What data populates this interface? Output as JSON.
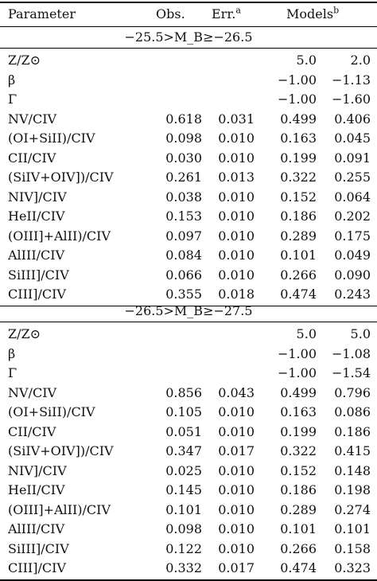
{
  "header": {
    "parameter": "Parameter",
    "obs": "Obs.",
    "err": "Err.",
    "err_sup": "a",
    "models": "Models",
    "models_sup": "b"
  },
  "sections": [
    {
      "title": "−25.5>M_B≥−26.5",
      "rows": [
        {
          "param": "Z/Z⊙",
          "obs": "",
          "err": "",
          "m1": "5.0",
          "m2": "2.0"
        },
        {
          "param": "β",
          "obs": "",
          "err": "",
          "m1": "−1.00",
          "m2": "−1.13"
        },
        {
          "param": "Γ",
          "obs": "",
          "err": "",
          "m1": "−1.00",
          "m2": "−1.60"
        },
        {
          "param": "NV/CIV",
          "obs": "0.618",
          "err": "0.031",
          "m1": "0.499",
          "m2": "0.406"
        },
        {
          "param": "(OI+SiII)/CIV",
          "obs": "0.098",
          "err": "0.010",
          "m1": "0.163",
          "m2": "0.045"
        },
        {
          "param": "CII/CIV",
          "obs": "0.030",
          "err": "0.010",
          "m1": "0.199",
          "m2": "0.091"
        },
        {
          "param": "(SiIV+OIV])/CIV",
          "obs": "0.261",
          "err": "0.013",
          "m1": "0.322",
          "m2": "0.255"
        },
        {
          "param": "NIV]/CIV",
          "obs": "0.038",
          "err": "0.010",
          "m1": "0.152",
          "m2": "0.064"
        },
        {
          "param": "HeII/CIV",
          "obs": "0.153",
          "err": "0.010",
          "m1": "0.186",
          "m2": "0.202"
        },
        {
          "param": "(OIII]+AlII)/CIV",
          "obs": "0.097",
          "err": "0.010",
          "m1": "0.289",
          "m2": "0.175"
        },
        {
          "param": "AlIII/CIV",
          "obs": "0.084",
          "err": "0.010",
          "m1": "0.101",
          "m2": "0.049"
        },
        {
          "param": "SiIII]/CIV",
          "obs": "0.066",
          "err": "0.010",
          "m1": "0.266",
          "m2": "0.090"
        },
        {
          "param": "CIII]/CIV",
          "obs": "0.355",
          "err": "0.018",
          "m1": "0.474",
          "m2": "0.243"
        }
      ]
    },
    {
      "title": "−26.5>M_B≥−27.5",
      "rows": [
        {
          "param": "Z/Z⊙",
          "obs": "",
          "err": "",
          "m1": "5.0",
          "m2": "5.0"
        },
        {
          "param": "β",
          "obs": "",
          "err": "",
          "m1": "−1.00",
          "m2": "−1.08"
        },
        {
          "param": "Γ",
          "obs": "",
          "err": "",
          "m1": "−1.00",
          "m2": "−1.54"
        },
        {
          "param": "NV/CIV",
          "obs": "0.856",
          "err": "0.043",
          "m1": "0.499",
          "m2": "0.796"
        },
        {
          "param": "(OI+SiII)/CIV",
          "obs": "0.105",
          "err": "0.010",
          "m1": "0.163",
          "m2": "0.086"
        },
        {
          "param": "CII/CIV",
          "obs": "0.051",
          "err": "0.010",
          "m1": "0.199",
          "m2": "0.186"
        },
        {
          "param": "(SiIV+OIV])/CIV",
          "obs": "0.347",
          "err": "0.017",
          "m1": "0.322",
          "m2": "0.415"
        },
        {
          "param": "NIV]/CIV",
          "obs": "0.025",
          "err": "0.010",
          "m1": "0.152",
          "m2": "0.148"
        },
        {
          "param": "HeII/CIV",
          "obs": "0.145",
          "err": "0.010",
          "m1": "0.186",
          "m2": "0.198"
        },
        {
          "param": "(OIII]+AlII)/CIV",
          "obs": "0.101",
          "err": "0.010",
          "m1": "0.289",
          "m2": "0.274"
        },
        {
          "param": "AlIII/CIV",
          "obs": "0.098",
          "err": "0.010",
          "m1": "0.101",
          "m2": "0.101"
        },
        {
          "param": "SiIII]/CIV",
          "obs": "0.122",
          "err": "0.010",
          "m1": "0.266",
          "m2": "0.158"
        },
        {
          "param": "CIII]/CIV",
          "obs": "0.332",
          "err": "0.017",
          "m1": "0.474",
          "m2": "0.323"
        }
      ]
    }
  ]
}
